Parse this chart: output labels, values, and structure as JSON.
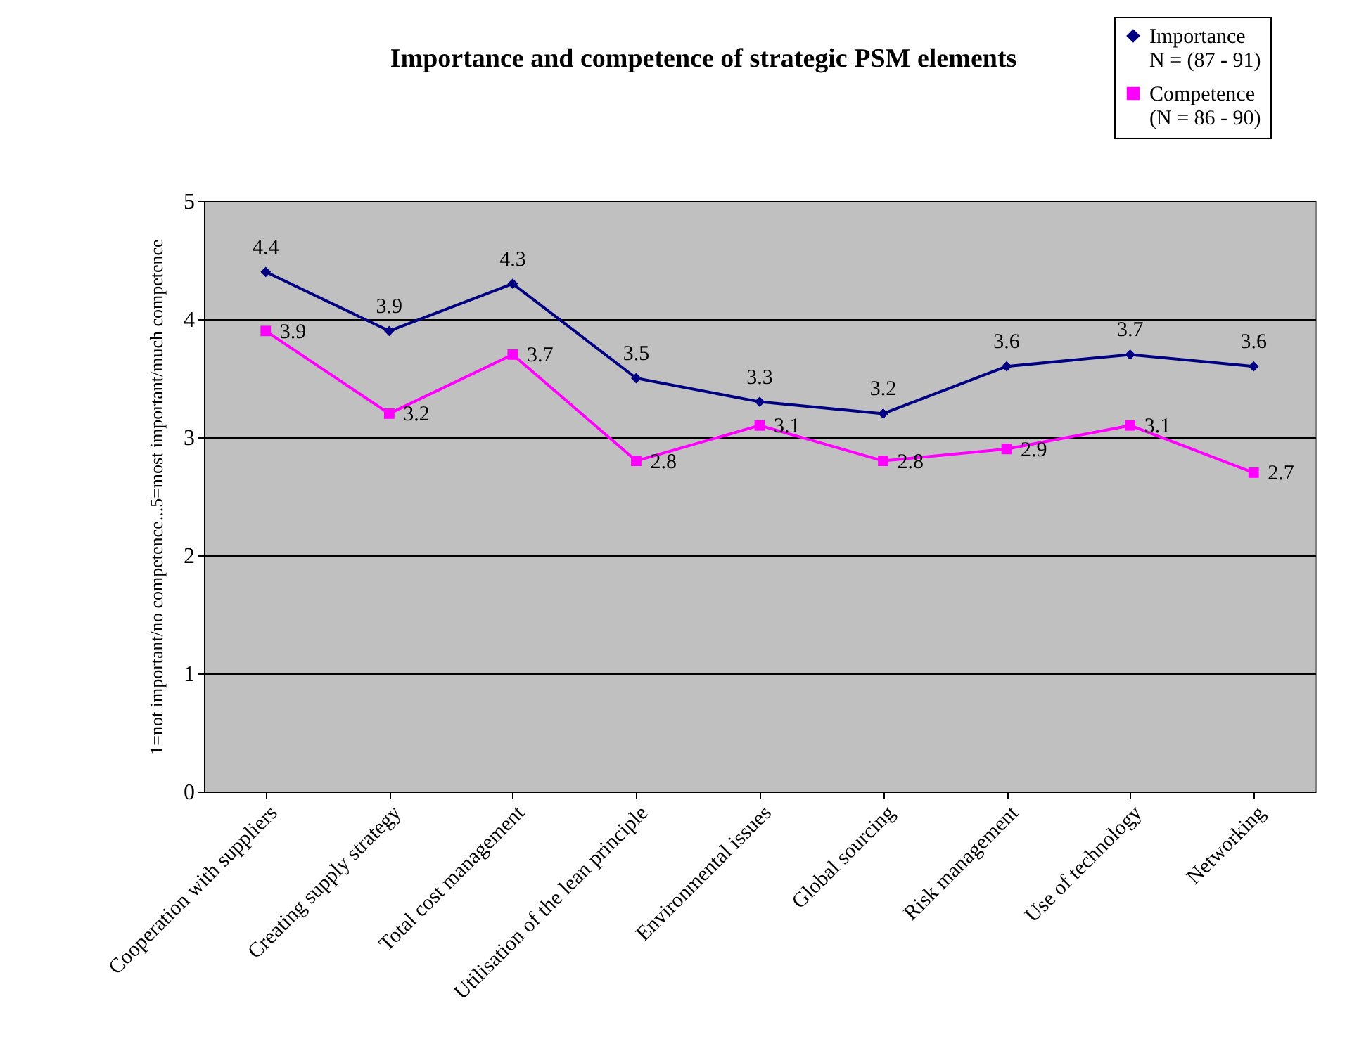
{
  "chart_data": {
    "type": "line",
    "title": "Importance and competence of strategic PSM elements",
    "ylabel": "1=not important/no competence...5=most important/much competence",
    "categories": [
      "Cooperation with suppliers",
      "Creating supply strategy",
      "Total cost management",
      "Utilisation of the lean principle",
      "Environmental issues",
      "Global sourcing",
      "Risk management",
      "Use of technology",
      "Networking"
    ],
    "series": [
      {
        "name": "Importance\nN = (87 - 91)",
        "color": "#000080",
        "marker": "diamond",
        "values": [
          4.4,
          3.9,
          4.3,
          3.5,
          3.3,
          3.2,
          3.6,
          3.7,
          3.6
        ]
      },
      {
        "name": "Competence\n(N = 86 - 90)",
        "color": "#ff00ff",
        "marker": "square",
        "values": [
          3.9,
          3.2,
          3.7,
          2.8,
          3.1,
          2.8,
          2.9,
          3.1,
          2.7
        ]
      }
    ],
    "ylim": [
      0,
      5
    ],
    "yticks": [
      0,
      1,
      2,
      3,
      4,
      5
    ],
    "grid": "y",
    "legend": "top right",
    "data_labels": true
  }
}
